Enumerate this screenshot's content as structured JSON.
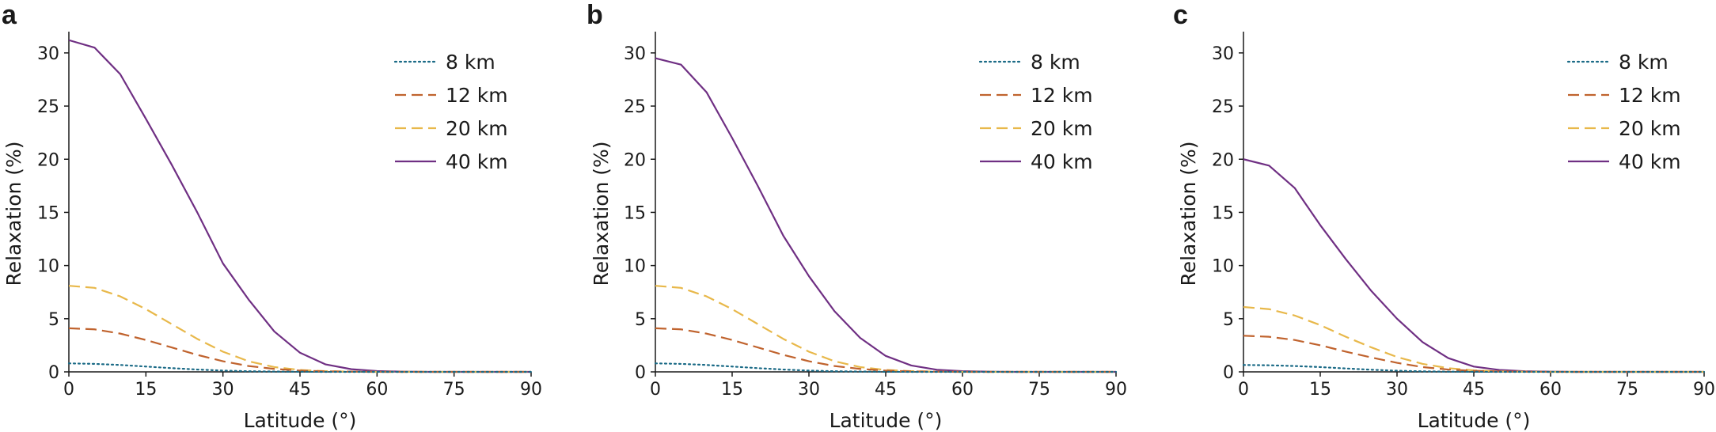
{
  "colors": {
    "8 km": "#1a6a86",
    "12 km": "#c0632e",
    "20 km": "#e8b84a",
    "40 km": "#6f2f83",
    "axis": "#1a1a1a"
  },
  "chart_data": [
    {
      "type": "line",
      "panel_label": "a",
      "xlabel": "Latitude (°)",
      "ylabel": "Relaxation (%)",
      "xlim": [
        0,
        90
      ],
      "ylim": [
        0,
        32
      ],
      "xticks": [
        0,
        15,
        30,
        45,
        60,
        75,
        90
      ],
      "yticks": [
        0,
        5,
        10,
        15,
        20,
        25,
        30
      ],
      "grid": false,
      "legend_position": "top-right",
      "x": [
        0,
        5,
        10,
        15,
        20,
        25,
        30,
        35,
        40,
        45,
        50,
        55,
        60,
        65,
        70,
        75,
        80,
        85,
        90
      ],
      "series": [
        {
          "name": "8 km",
          "style": "dotted",
          "values": [
            0.8,
            0.75,
            0.65,
            0.5,
            0.35,
            0.22,
            0.12,
            0.06,
            0.03,
            0.01,
            0.0,
            0.0,
            0.0,
            0.0,
            0.0,
            0.0,
            0.0,
            0.0,
            0.0
          ]
        },
        {
          "name": "12 km",
          "style": "dashed",
          "values": [
            4.1,
            4.0,
            3.6,
            3.0,
            2.3,
            1.6,
            1.0,
            0.55,
            0.28,
            0.12,
            0.05,
            0.02,
            0.0,
            0.0,
            0.0,
            0.0,
            0.0,
            0.0,
            0.0
          ]
        },
        {
          "name": "20 km",
          "style": "dashed",
          "values": [
            8.1,
            7.9,
            7.1,
            5.9,
            4.5,
            3.1,
            1.9,
            1.0,
            0.45,
            0.18,
            0.07,
            0.02,
            0.0,
            0.0,
            0.0,
            0.0,
            0.0,
            0.0,
            0.0
          ]
        },
        {
          "name": "40 km",
          "style": "solid",
          "values": [
            31.2,
            30.5,
            28.0,
            23.8,
            19.5,
            15.0,
            10.2,
            6.8,
            3.8,
            1.8,
            0.7,
            0.25,
            0.08,
            0.02,
            0.0,
            0.0,
            0.0,
            0.0,
            0.0
          ]
        }
      ]
    },
    {
      "type": "line",
      "panel_label": "b",
      "xlabel": "Latitude (°)",
      "ylabel": "Relaxation (%)",
      "xlim": [
        0,
        90
      ],
      "ylim": [
        0,
        32
      ],
      "xticks": [
        0,
        15,
        30,
        45,
        60,
        75,
        90
      ],
      "yticks": [
        0,
        5,
        10,
        15,
        20,
        25,
        30
      ],
      "grid": false,
      "legend_position": "top-right",
      "x": [
        0,
        5,
        10,
        15,
        20,
        25,
        30,
        35,
        40,
        45,
        50,
        55,
        60,
        65,
        70,
        75,
        80,
        85,
        90
      ],
      "series": [
        {
          "name": "8 km",
          "style": "dotted",
          "values": [
            0.8,
            0.75,
            0.65,
            0.5,
            0.35,
            0.22,
            0.12,
            0.06,
            0.03,
            0.01,
            0.0,
            0.0,
            0.0,
            0.0,
            0.0,
            0.0,
            0.0,
            0.0,
            0.0
          ]
        },
        {
          "name": "12 km",
          "style": "dashed",
          "values": [
            4.1,
            4.0,
            3.6,
            3.0,
            2.3,
            1.6,
            1.0,
            0.55,
            0.28,
            0.12,
            0.05,
            0.02,
            0.0,
            0.0,
            0.0,
            0.0,
            0.0,
            0.0,
            0.0
          ]
        },
        {
          "name": "20 km",
          "style": "dashed",
          "values": [
            8.1,
            7.9,
            7.1,
            5.9,
            4.5,
            3.1,
            1.9,
            1.0,
            0.45,
            0.18,
            0.07,
            0.02,
            0.0,
            0.0,
            0.0,
            0.0,
            0.0,
            0.0,
            0.0
          ]
        },
        {
          "name": "40 km",
          "style": "solid",
          "values": [
            29.5,
            28.9,
            26.3,
            22.0,
            17.5,
            12.8,
            9.0,
            5.7,
            3.2,
            1.5,
            0.6,
            0.2,
            0.07,
            0.02,
            0.0,
            0.0,
            0.0,
            0.0,
            0.0
          ]
        }
      ]
    },
    {
      "type": "line",
      "panel_label": "c",
      "xlabel": "Latitude (°)",
      "ylabel": "Relaxation (%)",
      "xlim": [
        0,
        90
      ],
      "ylim": [
        0,
        32
      ],
      "xticks": [
        0,
        15,
        30,
        45,
        60,
        75,
        90
      ],
      "yticks": [
        0,
        5,
        10,
        15,
        20,
        25,
        30
      ],
      "grid": false,
      "legend_position": "top-right",
      "x": [
        0,
        5,
        10,
        15,
        20,
        25,
        30,
        35,
        40,
        45,
        50,
        55,
        60,
        65,
        70,
        75,
        80,
        85,
        90
      ],
      "series": [
        {
          "name": "8 km",
          "style": "dotted",
          "values": [
            0.65,
            0.62,
            0.55,
            0.45,
            0.32,
            0.2,
            0.11,
            0.05,
            0.02,
            0.01,
            0.0,
            0.0,
            0.0,
            0.0,
            0.0,
            0.0,
            0.0,
            0.0,
            0.0
          ]
        },
        {
          "name": "12 km",
          "style": "dashed",
          "values": [
            3.4,
            3.3,
            3.0,
            2.5,
            1.9,
            1.35,
            0.85,
            0.45,
            0.22,
            0.1,
            0.04,
            0.01,
            0.0,
            0.0,
            0.0,
            0.0,
            0.0,
            0.0,
            0.0
          ]
        },
        {
          "name": "20 km",
          "style": "dashed",
          "values": [
            6.1,
            5.9,
            5.3,
            4.4,
            3.3,
            2.3,
            1.4,
            0.75,
            0.35,
            0.14,
            0.05,
            0.02,
            0.0,
            0.0,
            0.0,
            0.0,
            0.0,
            0.0,
            0.0
          ]
        },
        {
          "name": "40 km",
          "style": "solid",
          "values": [
            20.0,
            19.4,
            17.3,
            13.8,
            10.6,
            7.6,
            5.0,
            2.8,
            1.3,
            0.5,
            0.18,
            0.06,
            0.02,
            0.0,
            0.0,
            0.0,
            0.0,
            0.0,
            0.0
          ]
        }
      ]
    }
  ]
}
